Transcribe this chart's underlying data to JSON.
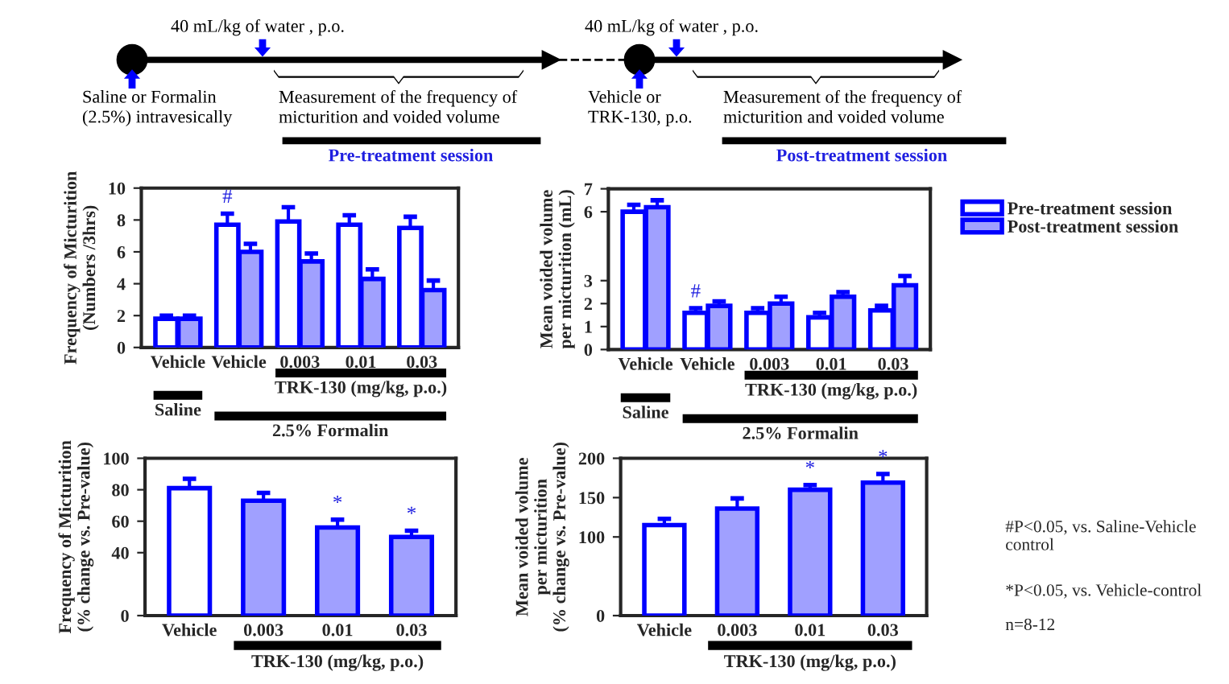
{
  "chart_data": [
    {
      "type": "other",
      "annotations": [
        "40 mL/kg of water , p.o.",
        "Saline or Formalin\n(2.5%) intravesically",
        "Measurement of the frequency of\nmicturition and voided volume",
        "Pre-treatment session",
        "40 mL/kg of water , p.o.",
        "Vehicle or\nTRK-130, p.o.",
        "Measurement of the frequency of\nmicturition and voided volume",
        "Post-treatment session"
      ]
    },
    {
      "type": "bar",
      "ylabel": "Frequency of Micturition\n(Numbers /3hrs)",
      "categories": [
        "Vehicle",
        "Vehicle",
        "0.003",
        "0.01",
        "0.03"
      ],
      "series": [
        {
          "color": "#ffffff",
          "values": [
            1.8,
            7.7,
            7.9,
            7.7,
            7.5
          ],
          "errors": [
            0.2,
            0.7,
            0.9,
            0.6,
            0.7
          ]
        },
        {
          "color": "#a0a0ff",
          "values": [
            1.8,
            6.0,
            5.4,
            4.3,
            3.6
          ],
          "errors": [
            0.2,
            0.5,
            0.5,
            0.6,
            0.6
          ]
        }
      ],
      "ylim": [
        0,
        10
      ],
      "yticks": [
        0,
        2,
        4,
        6,
        8,
        10
      ],
      "grid": false,
      "legend": false,
      "annotations": [
        "#",
        "Saline",
        "TRK-130 (mg/kg, p.o.)",
        "2.5% Formalin"
      ]
    },
    {
      "type": "bar",
      "ylabel": "Mean voided volume\nper micturition (mL)",
      "categories": [
        "Vehicle",
        "Vehicle",
        "0.003",
        "0.01",
        "0.03"
      ],
      "series": [
        {
          "name": "Pre-treatment session",
          "color": "#ffffff",
          "values": [
            6.0,
            1.6,
            1.6,
            1.4,
            1.7
          ],
          "errors": [
            0.3,
            0.2,
            0.2,
            0.2,
            0.2
          ]
        },
        {
          "name": "Post-treatment session",
          "color": "#a0a0ff",
          "values": [
            6.2,
            1.9,
            2.0,
            2.3,
            2.8
          ],
          "errors": [
            0.3,
            0.2,
            0.3,
            0.2,
            0.4
          ]
        }
      ],
      "ylim": [
        0,
        7
      ],
      "yticks": [
        0,
        1,
        2,
        3,
        6,
        7
      ],
      "grid": false,
      "legend": "right",
      "annotations": [
        "#",
        "Saline",
        "TRK-130 (mg/kg, p.o.)",
        "2.5% Formalin"
      ]
    },
    {
      "type": "bar",
      "ylabel": "Frequency of Micturition\n(% change vs. Pre-value)",
      "categories": [
        "Vehicle",
        "0.003",
        "0.01",
        "0.03"
      ],
      "values": [
        81,
        73,
        56,
        50
      ],
      "errors": [
        6,
        5,
        5,
        4
      ],
      "colors": [
        "#ffffff",
        "#a0a0ff",
        "#a0a0ff",
        "#a0a0ff"
      ],
      "ylim": [
        0,
        100
      ],
      "yticks": [
        0,
        40,
        60,
        80,
        100
      ],
      "grid": false,
      "legend": false,
      "annotations": [
        "*",
        "*",
        "TRK-130 (mg/kg, p.o.)"
      ]
    },
    {
      "type": "bar",
      "ylabel": "Mean voided volume\nper micturition\n(% change vs. Pre-value)",
      "categories": [
        "Vehicle",
        "0.003",
        "0.01",
        "0.03"
      ],
      "values": [
        115,
        136,
        160,
        169
      ],
      "errors": [
        8,
        13,
        6,
        11
      ],
      "colors": [
        "#ffffff",
        "#a0a0ff",
        "#a0a0ff",
        "#a0a0ff"
      ],
      "ylim": [
        0,
        200
      ],
      "yticks": [
        0,
        100,
        150,
        200
      ],
      "grid": false,
      "legend": false,
      "annotations": [
        "*",
        "*",
        "TRK-130 (mg/kg, p.o.)",
        "#P<0.05, vs. Saline-Vehicle\ncontrol",
        "*P<0.05, vs. Vehicle-control",
        "n=8-12"
      ]
    }
  ]
}
